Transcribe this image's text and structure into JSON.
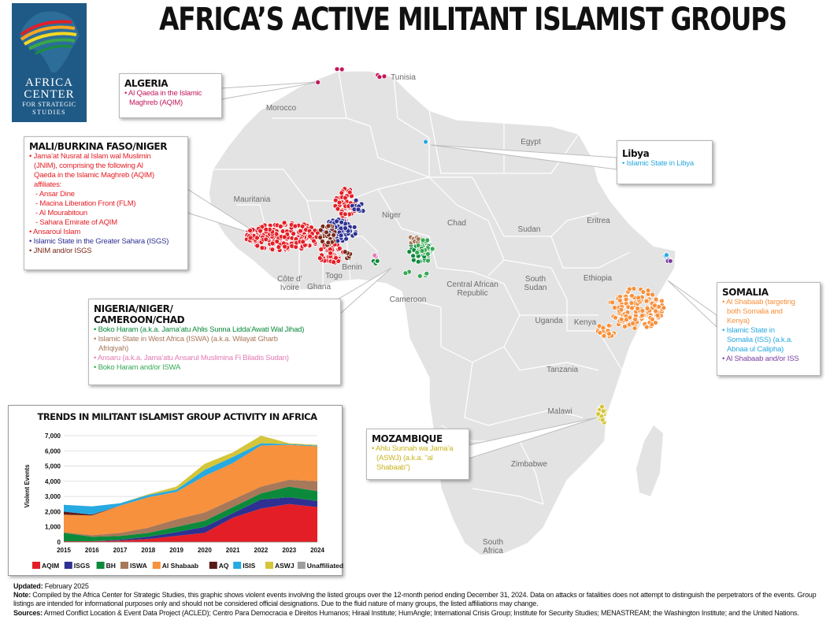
{
  "title": "AFRICA’S ACTIVE MILITANT ISLAMIST GROUPS",
  "logo": {
    "line1": "AFRICA",
    "line2": "CENTER",
    "line3": "FOR STRATEGIC",
    "line4": "STUDIES"
  },
  "countries": [
    "Tunisia",
    "Morocco",
    "Egypt",
    "Mauritania",
    "Niger",
    "Chad",
    "Sudan",
    "Eritrea",
    "Ethiopia",
    "Benin",
    "Togo",
    "Côte d’",
    "Ivoire",
    "Ghana",
    "Central African",
    "Republic",
    "South",
    "Sudan",
    "Cameroon",
    "Uganda",
    "Kenya",
    "Tanzania",
    "Malawi",
    "Zimbabwe",
    "South",
    "Africa"
  ],
  "callouts": {
    "algeria": {
      "heading": "ALGERIA",
      "items": [
        "• Al Qaeda in the Islamic",
        "Maghreb (AQIM)"
      ]
    },
    "mali": {
      "heading": "MALI/BURKINA FASO/NIGER",
      "items": [
        "• Jama’at Nusrat al Islam wal Muslimin",
        "(JNIM), comprising the following Al",
        "Qaeda in the Islamic Maghreb (AQIM)",
        "affiliates:",
        "- Ansar Dine",
        "- Macina Liberation Front (FLM)",
        "- Al Mourabitoun",
        "- Sahara Emirate of AQIM",
        "• Ansaroul Islam",
        "• Islamic State in the Greater Sahara (ISGS)",
        "• JNIM and/or ISGS"
      ]
    },
    "libya": {
      "heading": "Libya",
      "items": [
        "• Islamic State in Libya"
      ]
    },
    "somalia": {
      "heading": "SOMALIA",
      "items": [
        "• Al Shabaab (targeting",
        "both Somalia and",
        "Kenya)",
        "• Islamic State in",
        "Somalia (ISS) (a.k.a.",
        "Abnaa ul Calipha)",
        "• Al Shabaab and/or ISS"
      ]
    },
    "nigeria": {
      "heading1": "NIGERIA/NIGER/",
      "heading2": "CAMEROON/CHAD",
      "items": [
        "• Boko Haram (a.k.a. Jama’atu Ahlis Sunna Lidda’Awati Wal Jihad)",
        "• Islamic State in West Africa (ISWA) (a.k.a. Wilayat Gharb",
        "Afriqiyah)",
        "• Ansaru (a.k.a. Jama’atu Ansarul Muslimina Fi Biladis Sudan)",
        "• Boko Haram and/or ISWA"
      ]
    },
    "mozambique": {
      "heading": "MOZAMBIQUE",
      "items": [
        "• Ahlu Sunnah wa Jama’a",
        "(ASWJ) (a.k.a. \"al",
        "Shabaab\")"
      ]
    }
  },
  "chart_data": {
    "type": "area",
    "title": "TRENDS IN MILITANT ISLAMIST GROUP ACTIVITY IN AFRICA",
    "ylabel": "Violent Events",
    "xlabel": "",
    "x": [
      "2015",
      "2016",
      "2017",
      "2018",
      "2019",
      "2020",
      "2021",
      "2022",
      "2023",
      "2024"
    ],
    "ylim": [
      0,
      7000
    ],
    "yticks": [
      "0",
      "1,000",
      "2,000",
      "3,000",
      "4,000",
      "5,000",
      "6,000",
      "7,000"
    ],
    "stacked": true,
    "series": [
      {
        "name": "AQIM",
        "color": "#e41e26",
        "values": [
          50,
          50,
          100,
          200,
          400,
          600,
          1600,
          2200,
          2500,
          2300
        ]
      },
      {
        "name": "ISGS",
        "color": "#2e3192",
        "values": [
          0,
          0,
          50,
          150,
          250,
          400,
          300,
          600,
          450,
          400
        ]
      },
      {
        "name": "BH",
        "color": "#0c8a3c",
        "values": [
          550,
          300,
          250,
          250,
          350,
          400,
          400,
          400,
          700,
          650
        ]
      },
      {
        "name": "ISWA",
        "color": "#a8785a",
        "values": [
          50,
          100,
          200,
          350,
          500,
          550,
          500,
          450,
          450,
          650
        ]
      },
      {
        "name": "Al Shabaab",
        "color": "#f7913d",
        "values": [
          1150,
          1300,
          1800,
          2000,
          1800,
          2400,
          2400,
          2700,
          2300,
          2300
        ]
      },
      {
        "name": "AQ",
        "color": "#5a1a1a",
        "values": [
          200,
          50,
          0,
          0,
          0,
          0,
          0,
          0,
          0,
          0
        ]
      },
      {
        "name": "ISIS",
        "color": "#27a9e1",
        "values": [
          450,
          550,
          150,
          150,
          150,
          400,
          400,
          150,
          50,
          50
        ]
      },
      {
        "name": "ASWJ",
        "color": "#d4c53a",
        "values": [
          0,
          0,
          0,
          50,
          200,
          400,
          300,
          500,
          50,
          50
        ]
      },
      {
        "name": "Unaffiliated",
        "color": "#9e9e9e",
        "values": [
          0,
          0,
          0,
          0,
          0,
          0,
          0,
          0,
          0,
          0
        ]
      }
    ]
  },
  "footnote": {
    "updated_label": "Updated:",
    "updated": " February 2025",
    "note_label": "Note:",
    "note": " Compiled by the Africa Center for Strategic Studies, this graphic shows violent events involving the listed groups over the 12-month period ending December 31, 2024. Data on attacks or fatalities does not attempt to distinguish the perpetrators of the events. Group listings are intended for informational purposes only and should not be considered official designations. Due to the fluid nature of many groups, the listed affiliations may change.",
    "sources_label": "Sources:",
    "sources": " Armed Conflict Location & Event Data Project (ACLED); Centro Para Democracia e Direitos Humanos; Hiraal Institute; HumAngle; International Crisis Group; Institute for Security Studies; MENASTREAM; the Washington Institute; and the United Nations."
  },
  "colors": {
    "land": "#e3e3e3",
    "border": "#ffffff",
    "aqim": "#c2185b",
    "jnim": "#e41e26",
    "isgs": "#2e3192",
    "jnim_isgs": "#7b2a1a",
    "bh": "#0c8a3c",
    "iswa": "#a8785a",
    "ansaru": "#e37ab5",
    "bh_iswa": "#35a852",
    "libya": "#27a9e1",
    "shabaab": "#f7913d",
    "iss": "#27a9e1",
    "shabaab_iss": "#7b3fa0",
    "aswj": "#d4c53a",
    "logo_bg": "#1f5a86"
  }
}
